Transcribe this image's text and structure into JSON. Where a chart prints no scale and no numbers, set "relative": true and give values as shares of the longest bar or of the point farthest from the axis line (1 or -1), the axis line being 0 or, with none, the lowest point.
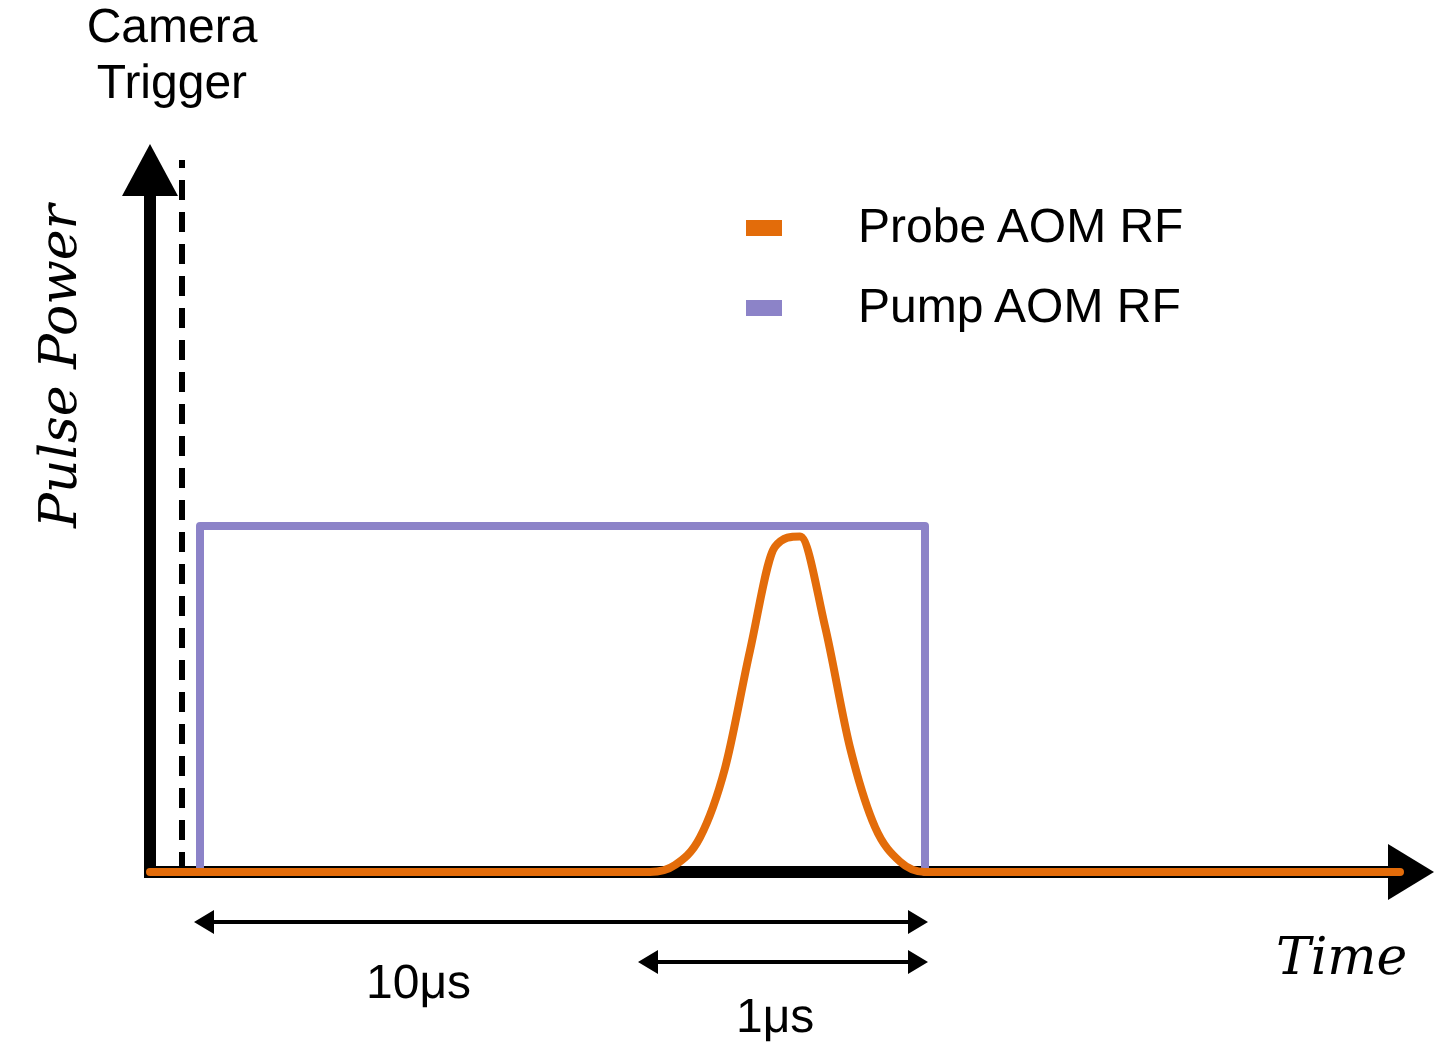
{
  "chart_data": {
    "type": "line",
    "relative": true,
    "xlabel": "Time",
    "ylabel": "Pulse Power",
    "legend": "top right",
    "categories": [
      null,
      null,
      null,
      null,
      null,
      null,
      null,
      null,
      null,
      null,
      null,
      null,
      null,
      null,
      null,
      null,
      null,
      null,
      null,
      null,
      null,
      null,
      null,
      null,
      null,
      null,
      null,
      null,
      null,
      null,
      null,
      null,
      null,
      null,
      null,
      null,
      null,
      null,
      null,
      null,
      null,
      null,
      null,
      null,
      null,
      null,
      null,
      null,
      null,
      null,
      null
    ],
    "series": [
      {
        "name": "Probe AOM RF",
        "color": "#e36c0a",
        "type": "line",
        "values": [
          0,
          0,
          0,
          0,
          0,
          0,
          0,
          0,
          0,
          0,
          0,
          0,
          0,
          0,
          0,
          0,
          0,
          0,
          0,
          0,
          0,
          0.02,
          0.1,
          0.3,
          0.64,
          0.94,
          0.97,
          0.71,
          0.36,
          0.13,
          0.03,
          0,
          0,
          0,
          0,
          0,
          0,
          0,
          0,
          0,
          0,
          0,
          0,
          0,
          0,
          0,
          0,
          0,
          0,
          0,
          0
        ]
      },
      {
        "name": "Pump AOM RF",
        "color": "#8c83c8",
        "type": "step",
        "values": [
          null,
          0,
          1,
          1,
          1,
          1,
          1,
          1,
          1,
          1,
          1,
          1,
          1,
          1,
          1,
          1,
          1,
          1,
          1,
          1,
          1,
          1,
          1,
          1,
          1,
          1,
          1,
          1,
          1,
          1,
          1,
          0,
          null,
          null,
          null,
          null,
          null,
          null,
          null,
          null,
          null,
          null,
          null,
          null,
          null,
          null,
          null,
          null,
          null,
          null,
          null
        ]
      }
    ],
    "annotations": [
      "Camera Trigger",
      "10μs",
      "1μs"
    ]
  }
}
